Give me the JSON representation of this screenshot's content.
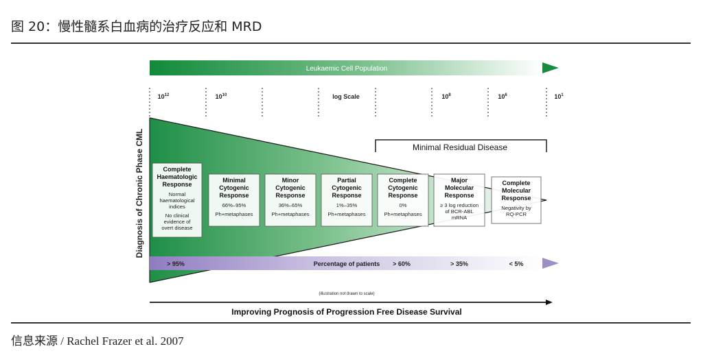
{
  "header": {
    "title": "图 20：慢性髓系白血病的治疗反应和 MRD"
  },
  "footer": {
    "source_label": "信息来源",
    "source_text": " / Rachel Frazer et al. 2007"
  },
  "diagram": {
    "top_arrow_label": "Leukaemic Cell Population",
    "scale_labels": [
      {
        "base": "10",
        "exp": "12"
      },
      {
        "base": "10",
        "exp": "10"
      },
      {
        "base": "log Scale",
        "exp": ""
      },
      {
        "base": "10",
        "exp": "8"
      },
      {
        "base": "10",
        "exp": "6"
      },
      {
        "base": "10",
        "exp": "1"
      }
    ],
    "vertical_label": "Diagnosis of Chronic Phase CML",
    "mrd_label": "Minimal Residual Disease",
    "responses": [
      {
        "title": [
          "Complete",
          "Haematologic",
          "Response"
        ],
        "detail": [
          "Normal",
          "haematological",
          "indices",
          "No clinical",
          "evidence of",
          "overt disease"
        ]
      },
      {
        "title": [
          "Minimal",
          "Cytogenic",
          "Response"
        ],
        "detail": [
          "66%–95%",
          "Ph+metaphases"
        ]
      },
      {
        "title": [
          "Minor",
          "Cytogenic",
          "Response"
        ],
        "detail": [
          "36%–65%",
          "Ph+metaphases"
        ]
      },
      {
        "title": [
          "Partial",
          "Cytogenic",
          "Response"
        ],
        "detail": [
          "1%–35%",
          "Ph+metaphases"
        ]
      },
      {
        "title": [
          "Complete",
          "Cytogenic",
          "Response"
        ],
        "detail": [
          "0%",
          "Ph+metaphases"
        ]
      },
      {
        "title": [
          "Major",
          "Molecular",
          "Response"
        ],
        "detail": [
          "≥ 3 log reduction",
          "of BCR-ABL",
          "mRNA"
        ]
      },
      {
        "title": [
          "Complete",
          "Molecular",
          "Response"
        ],
        "detail": [
          "Negativity by",
          "RQ-PCR"
        ]
      }
    ],
    "patients_bar": {
      "label": "Percentage of patients",
      "values": [
        "> 95%",
        "> 60%",
        "> 35%",
        "< 5%"
      ]
    },
    "note": "(illustration not drawn to scale)",
    "bottom_arrow_label": "Improving Prognosis of Progression Free Disease Survival",
    "colors": {
      "green_dark": "#1a8a3c",
      "purple": "#a08fc4"
    }
  }
}
